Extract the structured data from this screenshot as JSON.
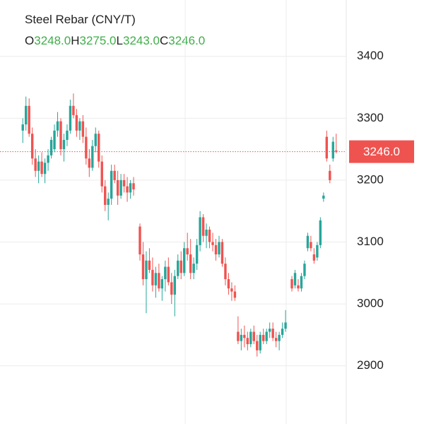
{
  "chart_data": {
    "type": "candlestick",
    "title": "Steel Rebar (CNY/T)",
    "ohlc": [
      {
        "label": "O",
        "value": 3248,
        "value_label": "3248.0"
      },
      {
        "label": "H",
        "value": 3275,
        "value_label": "3275.0"
      },
      {
        "label": "L",
        "value": 3243,
        "value_label": "3243.0"
      },
      {
        "label": "C",
        "value": 3246,
        "value_label": "3246.0"
      }
    ],
    "last_price": 3246,
    "last_price_label": "3246.0",
    "up_color": "#26a69a",
    "down_color": "#ef5350",
    "ylim": [
      2806,
      3491
    ],
    "yticks": [
      2900,
      3000,
      3100,
      3200,
      3300,
      3400
    ],
    "grid": true,
    "open": [
      3280,
      3290,
      3320,
      3275,
      3235,
      3215,
      3230,
      3210,
      3228,
      3240,
      3250,
      3280,
      3295,
      3250,
      3265,
      3280,
      3320,
      3305,
      3280,
      3295,
      3270,
      3235,
      3220,
      3255,
      3275,
      3230,
      3190,
      3160,
      3170,
      3215,
      3200,
      3175,
      3200,
      3190,
      3180,
      3195,
      null,
      3125,
      3080,
      3040,
      3070,
      3055,
      3030,
      3050,
      3025,
      3040,
      3060,
      3035,
      3015,
      3045,
      3070,
      3050,
      3090,
      3080,
      3050,
      3065,
      3095,
      3140,
      3110,
      3120,
      3100,
      3095,
      3080,
      3100,
      3065,
      3040,
      3025,
      3020,
      2955,
      2940,
      2950,
      2945,
      2935,
      2955,
      2940,
      2925,
      2950,
      2940,
      2955,
      2960,
      2945,
      2940,
      2950,
      2960,
      null,
      3040,
      3030,
      3030,
      3025,
      3045,
      3090,
      3100,
      3080,
      3075,
      3095,
      3170,
      3270,
      3215,
      3235,
      3248
    ],
    "high": [
      3300,
      3335,
      3332,
      3285,
      3250,
      3240,
      3245,
      3235,
      3250,
      3270,
      3290,
      3310,
      3300,
      3275,
      3290,
      3330,
      3340,
      3315,
      3300,
      3305,
      3285,
      3250,
      3265,
      3285,
      3280,
      3240,
      3200,
      3180,
      3225,
      3225,
      3215,
      3210,
      3210,
      3205,
      3200,
      3205,
      null,
      3130,
      3100,
      3085,
      3090,
      3075,
      3060,
      3065,
      3045,
      3070,
      3075,
      3050,
      3055,
      3080,
      3085,
      3100,
      3115,
      3105,
      3075,
      3105,
      3150,
      3145,
      3130,
      3125,
      3115,
      3105,
      3110,
      3105,
      3075,
      3050,
      3035,
      3030,
      2980,
      2960,
      2965,
      2955,
      2960,
      2965,
      2950,
      2955,
      2960,
      2960,
      2970,
      2970,
      2955,
      2955,
      2970,
      2990,
      null,
      3045,
      3055,
      3040,
      3050,
      3070,
      3115,
      3110,
      3090,
      3100,
      3140,
      3180,
      3280,
      3225,
      3270,
      3275
    ],
    "low": [
      3260,
      3280,
      3270,
      3225,
      3205,
      3195,
      3205,
      3195,
      3215,
      3235,
      3245,
      3270,
      3240,
      3230,
      3255,
      3275,
      3300,
      3270,
      3265,
      3260,
      3225,
      3205,
      3215,
      3245,
      3220,
      3180,
      3150,
      3135,
      3160,
      3195,
      3160,
      3170,
      3180,
      3165,
      3170,
      3175,
      null,
      3070,
      3030,
      2985,
      3050,
      3020,
      3010,
      3020,
      3005,
      3020,
      3030,
      3000,
      2980,
      3040,
      3040,
      3045,
      3070,
      3040,
      3040,
      3055,
      3085,
      3100,
      3090,
      3090,
      3085,
      3070,
      3075,
      3060,
      3030,
      3015,
      3005,
      3005,
      2935,
      2925,
      2930,
      2925,
      2930,
      2935,
      2915,
      2920,
      2935,
      2935,
      2945,
      2940,
      2930,
      2925,
      2945,
      2955,
      null,
      3020,
      3025,
      3020,
      3020,
      3040,
      3085,
      3085,
      3065,
      3070,
      3090,
      3165,
      3230,
      3195,
      3230,
      3243
    ],
    "close": [
      3290,
      3320,
      3275,
      3235,
      3215,
      3230,
      3210,
      3228,
      3240,
      3265,
      3280,
      3295,
      3250,
      3265,
      3280,
      3320,
      3305,
      3280,
      3295,
      3270,
      3235,
      3220,
      3255,
      3275,
      3230,
      3190,
      3160,
      3170,
      3215,
      3200,
      3175,
      3200,
      3190,
      3180,
      3195,
      3185,
      null,
      3080,
      3040,
      3070,
      3055,
      3030,
      3050,
      3025,
      3040,
      3060,
      3035,
      3015,
      3045,
      3070,
      3050,
      3090,
      3080,
      3050,
      3065,
      3095,
      3140,
      3110,
      3120,
      3100,
      3095,
      3080,
      3100,
      3065,
      3040,
      3025,
      3020,
      3010,
      2940,
      2950,
      2945,
      2935,
      2955,
      2940,
      2925,
      2950,
      2940,
      2955,
      2960,
      2945,
      2940,
      2950,
      2960,
      2970,
      null,
      3025,
      3050,
      3025,
      3045,
      3065,
      3110,
      3090,
      3070,
      3095,
      3135,
      3175,
      3235,
      3200,
      3262,
      3246
    ]
  }
}
